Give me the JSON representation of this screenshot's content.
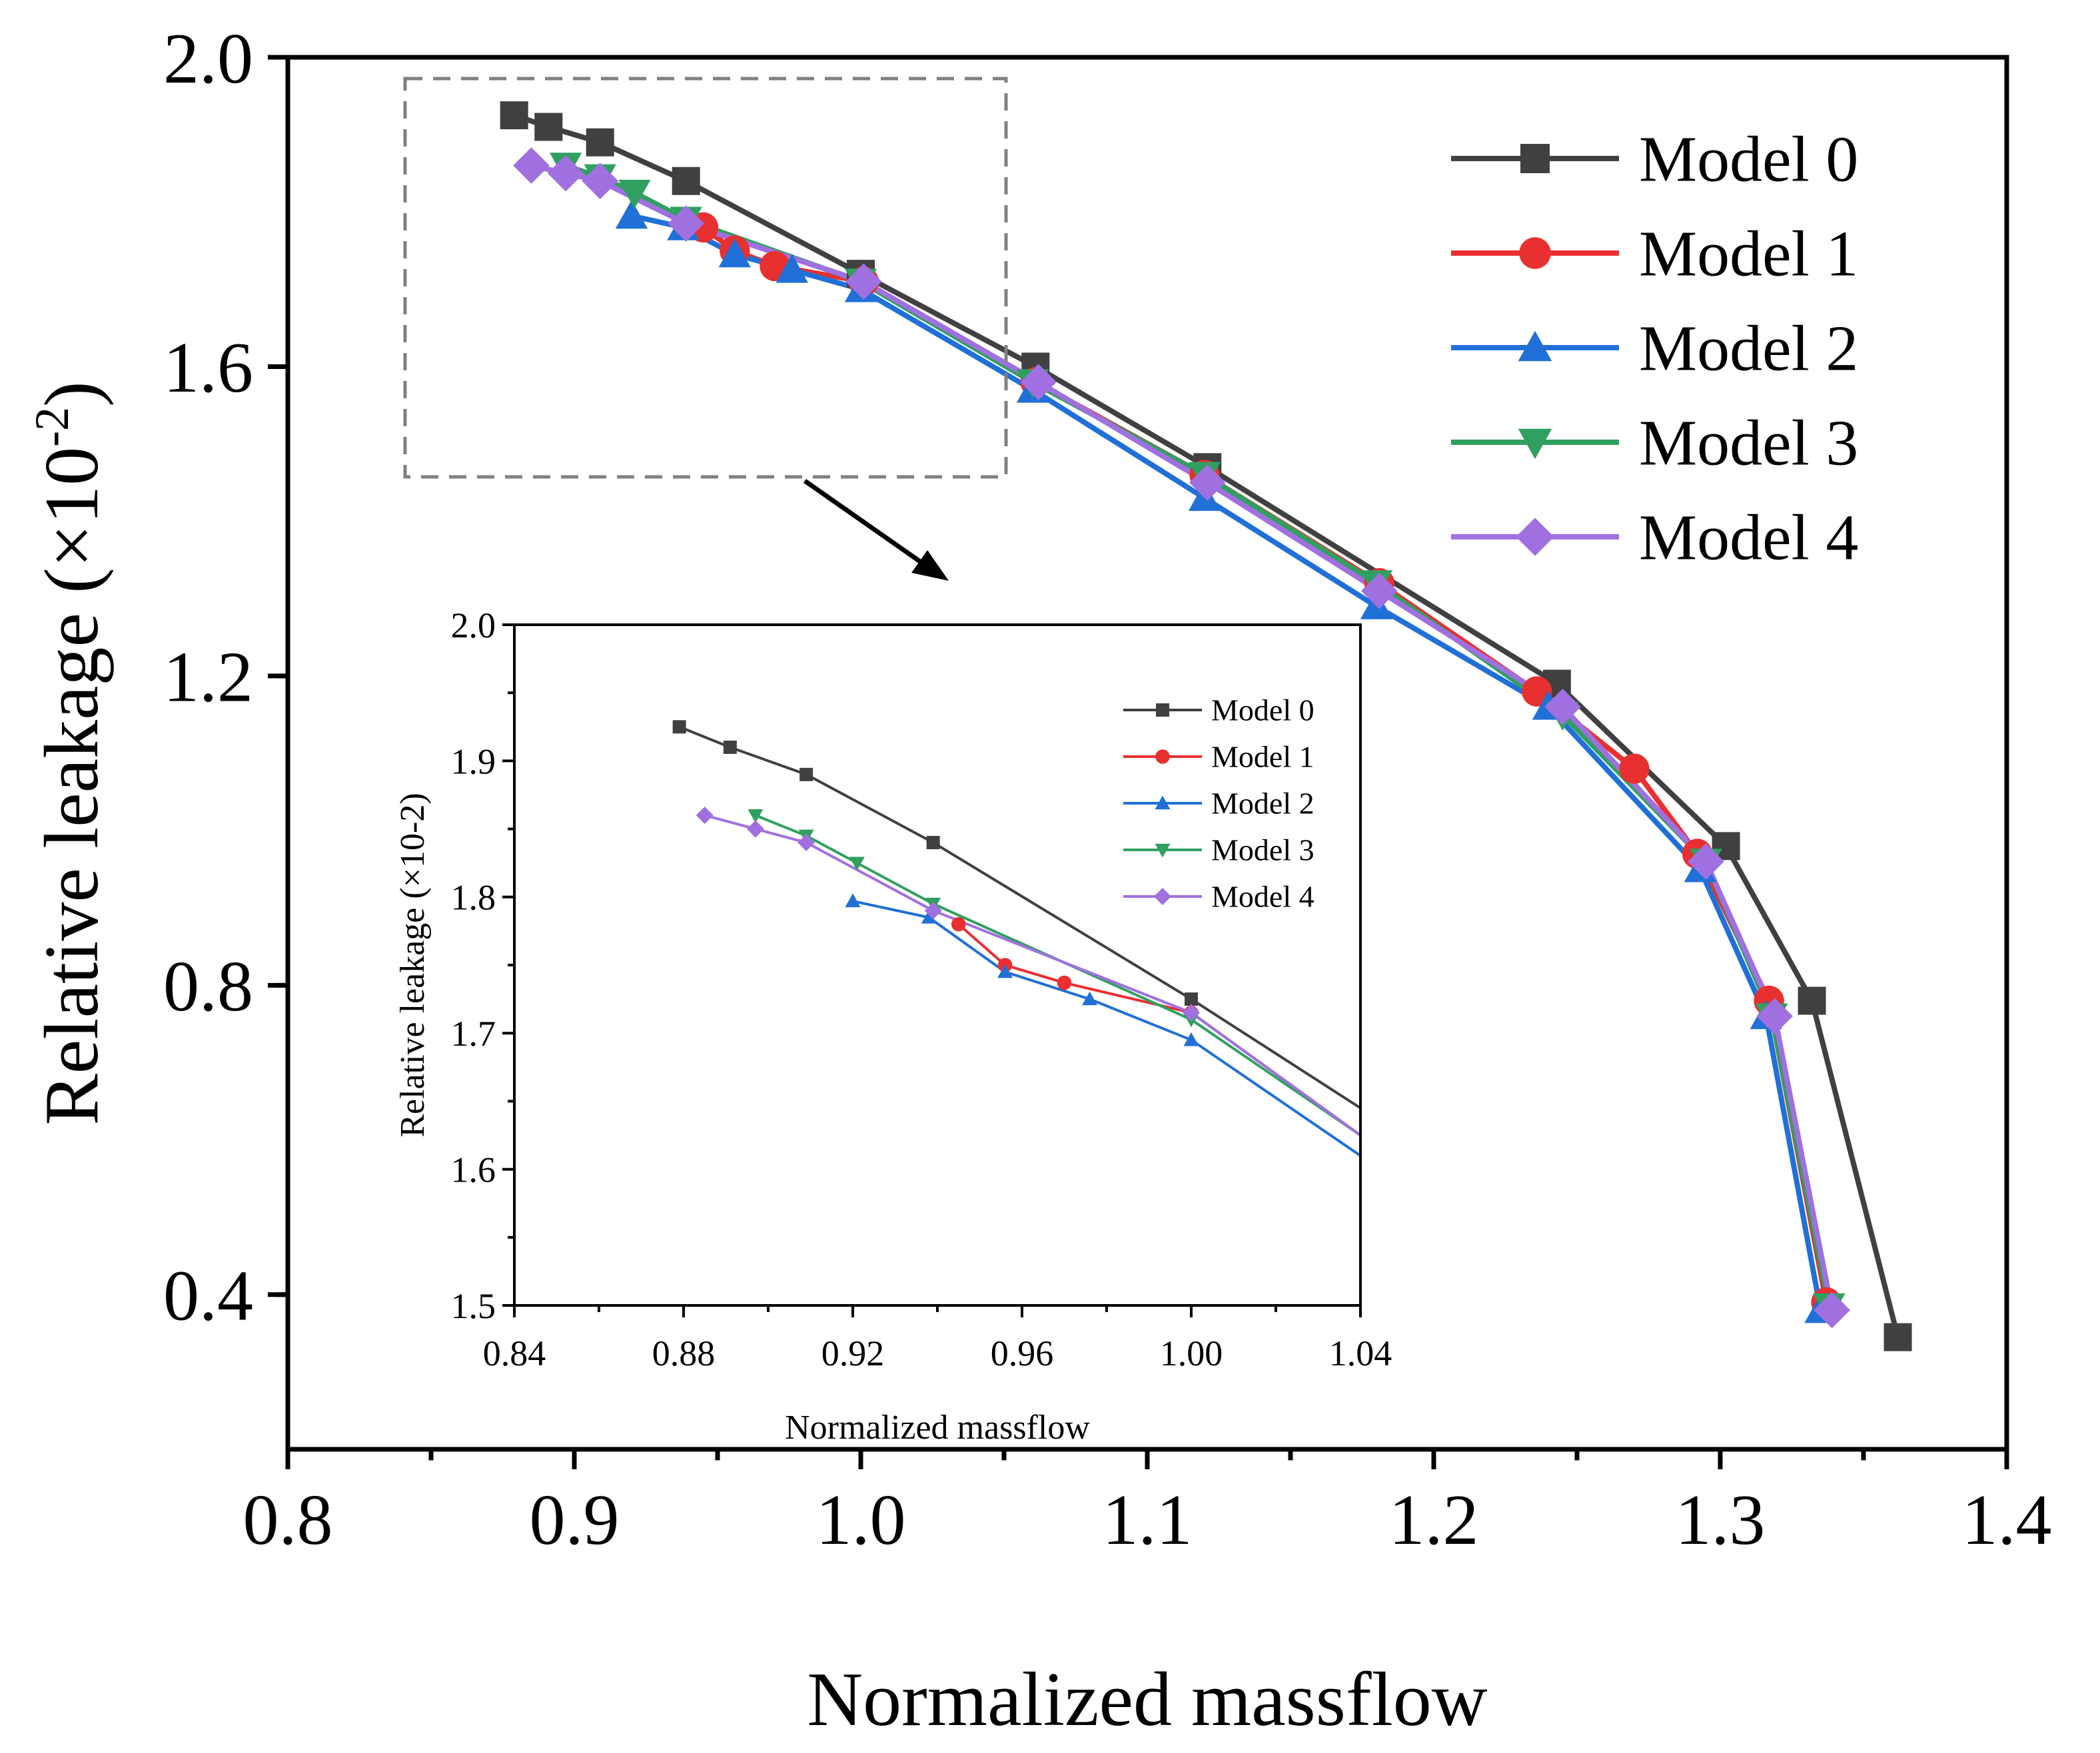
{
  "chart_data": [
    {
      "type": "line",
      "title": "",
      "xlabel": "Normalized massflow",
      "ylabel": "Relative leakage (×10",
      "ylabel_sup": "-2",
      "ylabel_close": ")",
      "xlim": [
        0.8,
        1.4
      ],
      "ylim": [
        0.2,
        2.0
      ],
      "x_ticks": [
        0.8,
        0.9,
        1.0,
        1.1,
        1.2,
        1.3,
        1.4
      ],
      "x_tick_labels": [
        "0.8",
        "0.9",
        "1.0",
        "1.1",
        "1.2",
        "1.3",
        "1.4"
      ],
      "y_ticks": [
        0.4,
        0.8,
        1.2,
        1.6,
        2.0
      ],
      "y_tick_labels": [
        "0.4",
        "0.8",
        "1.2",
        "1.6",
        "2.0"
      ],
      "grid": false,
      "legend_position": "top-right",
      "series": [
        {
          "name": "Model 0",
          "color": "#404040",
          "marker": "square",
          "x": [
            0.879,
            0.891,
            0.909,
            0.939,
            1.0,
            1.061,
            1.121,
            1.243,
            1.302,
            1.332,
            1.362
          ],
          "y": [
            1.925,
            1.91,
            1.89,
            1.84,
            1.72,
            1.6,
            1.47,
            1.19,
            0.98,
            0.78,
            0.345
          ]
        },
        {
          "name": "Model 1",
          "color": "#e83030",
          "marker": "circle",
          "x": [
            0.945,
            0.956,
            0.97,
            1.001,
            1.061,
            1.12,
            1.181,
            1.236,
            1.27,
            1.292,
            1.317,
            1.337
          ],
          "y": [
            1.78,
            1.75,
            1.73,
            1.71,
            1.58,
            1.46,
            1.32,
            1.18,
            1.08,
            0.97,
            0.78,
            0.39
          ]
        },
        {
          "name": "Model 2",
          "color": "#2070d8",
          "marker": "triangle-up",
          "x": [
            0.92,
            0.938,
            0.956,
            0.976,
            1.0,
            1.06,
            1.12,
            1.18,
            1.24,
            1.293,
            1.316,
            1.335
          ],
          "y": [
            1.795,
            1.78,
            1.745,
            1.725,
            1.7,
            1.57,
            1.43,
            1.29,
            1.16,
            0.95,
            0.76,
            0.38
          ]
        },
        {
          "name": "Model 3",
          "color": "#30a060",
          "marker": "triangle-down",
          "x": [
            0.897,
            0.909,
            0.921,
            0.939,
            1.0,
            1.06,
            1.12,
            1.18,
            1.245,
            1.295,
            1.318,
            1.338
          ],
          "y": [
            1.86,
            1.845,
            1.825,
            1.79,
            1.71,
            1.58,
            1.46,
            1.32,
            1.15,
            0.96,
            0.76,
            0.385
          ]
        },
        {
          "name": "Model 4",
          "color": "#a070e0",
          "marker": "diamond",
          "x": [
            0.885,
            0.897,
            0.909,
            0.939,
            1.001,
            1.062,
            1.121,
            1.181,
            1.245,
            1.295,
            1.319,
            1.339
          ],
          "y": [
            1.86,
            1.85,
            1.84,
            1.785,
            1.71,
            1.58,
            1.45,
            1.31,
            1.16,
            0.96,
            0.76,
            0.38
          ]
        }
      ]
    },
    {
      "type": "line",
      "title": "",
      "xlabel": "Normalized massflow",
      "ylabel": "Relative leakage (×10-2)",
      "xlim": [
        0.84,
        1.04
      ],
      "ylim": [
        1.5,
        2.0
      ],
      "x_ticks": [
        0.84,
        0.88,
        0.92,
        0.96,
        1.0,
        1.04
      ],
      "x_tick_labels": [
        "0.84",
        "0.88",
        "0.92",
        "0.96",
        "1.00",
        "1.04"
      ],
      "y_ticks": [
        1.5,
        1.6,
        1.7,
        1.8,
        1.9,
        2.0
      ],
      "y_tick_labels": [
        "1.5",
        "1.6",
        "1.7",
        "1.8",
        "1.9",
        "2.0"
      ],
      "grid": false,
      "legend_position": "top-right",
      "series": [
        {
          "name": "Model 0",
          "color": "#404040",
          "marker": "square",
          "x": [
            0.879,
            0.891,
            0.909,
            0.939,
            1.0,
            1.04
          ],
          "y": [
            1.925,
            1.91,
            1.89,
            1.84,
            1.725,
            1.645
          ]
        },
        {
          "name": "Model 1",
          "color": "#e83030",
          "marker": "circle",
          "x": [
            0.945,
            0.956,
            0.97,
            1.0,
            1.04
          ],
          "y": [
            1.78,
            1.75,
            1.737,
            1.715,
            1.625
          ]
        },
        {
          "name": "Model 2",
          "color": "#2070d8",
          "marker": "triangle-up",
          "x": [
            0.92,
            0.938,
            0.956,
            0.976,
            1.0,
            1.04
          ],
          "y": [
            1.797,
            1.785,
            1.745,
            1.725,
            1.695,
            1.61
          ]
        },
        {
          "name": "Model 3",
          "color": "#30a060",
          "marker": "triangle-down",
          "x": [
            0.897,
            0.909,
            0.921,
            0.939,
            1.0,
            1.04
          ],
          "y": [
            1.86,
            1.845,
            1.825,
            1.795,
            1.71,
            1.625
          ]
        },
        {
          "name": "Model 4",
          "color": "#a070e0",
          "marker": "diamond",
          "x": [
            0.885,
            0.897,
            0.909,
            0.939,
            1.0,
            1.04
          ],
          "y": [
            1.86,
            1.85,
            1.84,
            1.79,
            1.715,
            1.625
          ]
        }
      ]
    }
  ]
}
